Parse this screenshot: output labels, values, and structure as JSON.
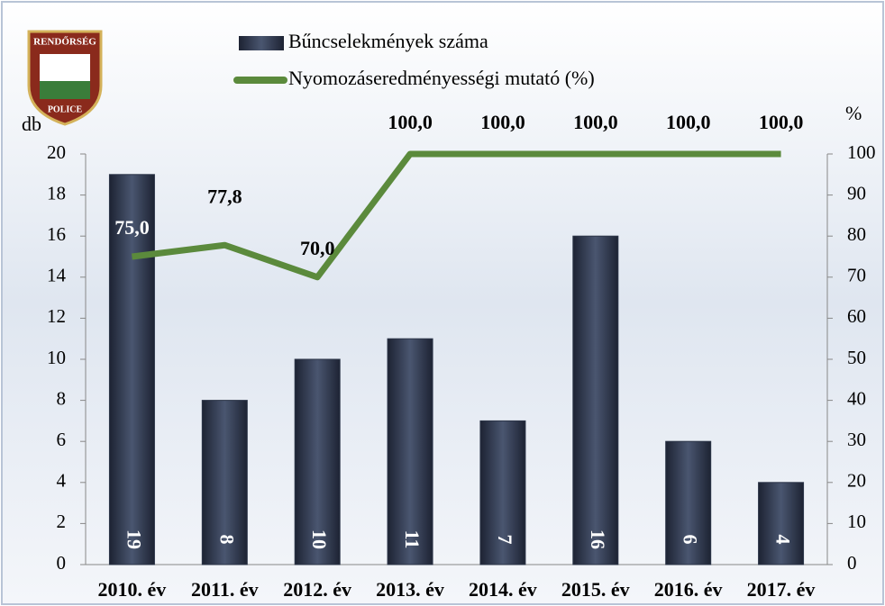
{
  "chart_data": {
    "type": "bar",
    "logo": {
      "top": "RENDŐRSÉG",
      "bottom": "POLICE"
    },
    "ylabel": "db",
    "y2label": "%",
    "categories": [
      "2010. év",
      "2011. év",
      "2012. év",
      "2013. év",
      "2014. év",
      "2015. év",
      "2016. év",
      "2017. év"
    ],
    "series": [
      {
        "name": "Bűncselekmények száma",
        "type": "bar",
        "color": "#2c3548",
        "values": [
          19,
          8,
          10,
          11,
          7,
          16,
          6,
          4
        ]
      },
      {
        "name": "Nyomozáseredményességi mutató (%)",
        "type": "line",
        "axis": "y2",
        "color": "#5b8a3c",
        "values": [
          75.0,
          77.8,
          70.0,
          100.0,
          100.0,
          100.0,
          100.0,
          100.0
        ],
        "value_labels": [
          "75,0",
          "77,8",
          "70,0",
          "100,0",
          "100,0",
          "100,0",
          "100,0",
          "100,0"
        ]
      }
    ],
    "ylim": [
      0,
      20
    ],
    "yticks": [
      0,
      2,
      4,
      6,
      8,
      10,
      12,
      14,
      16,
      18,
      20
    ],
    "y2lim": [
      0,
      100
    ],
    "y2ticks": [
      0,
      10,
      20,
      30,
      40,
      50,
      60,
      70,
      80,
      90,
      100
    ]
  }
}
